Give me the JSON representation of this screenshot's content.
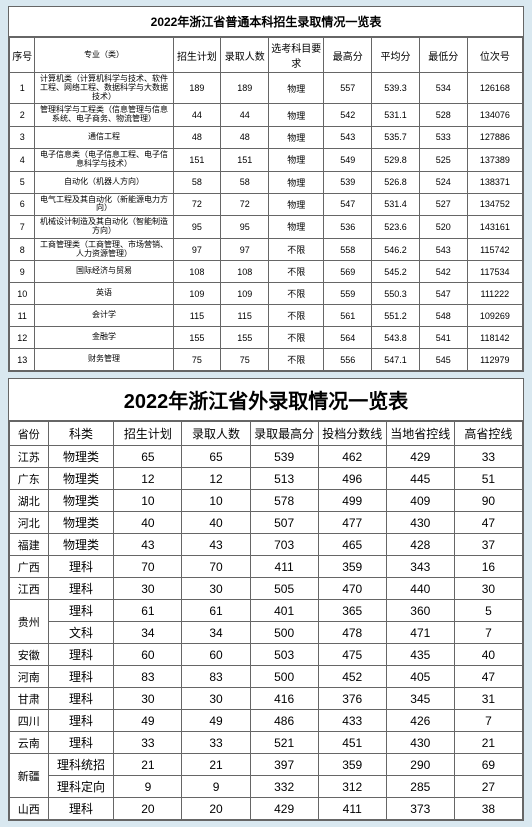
{
  "table1": {
    "title": "2022年浙江省普通本科招生录取情况一览表",
    "headers": [
      "序号",
      "专业（类）",
      "招生计划",
      "录取人数",
      "选考科目要求",
      "最高分",
      "平均分",
      "最低分",
      "位次号"
    ],
    "rows": [
      [
        "1",
        "计算机类（计算机科学与技术、软件工程、网络工程、数据科学与大数据技术）",
        "189",
        "189",
        "物理",
        "557",
        "539.3",
        "534",
        "126168"
      ],
      [
        "2",
        "管理科学与工程类（信息管理与信息系统、电子商务、物流管理）",
        "44",
        "44",
        "物理",
        "542",
        "531.1",
        "528",
        "134076"
      ],
      [
        "3",
        "通信工程",
        "48",
        "48",
        "物理",
        "543",
        "535.7",
        "533",
        "127886"
      ],
      [
        "4",
        "电子信息类（电子信息工程、电子信息科学与技术）",
        "151",
        "151",
        "物理",
        "549",
        "529.8",
        "525",
        "137389"
      ],
      [
        "5",
        "自动化（机器人方向）",
        "58",
        "58",
        "物理",
        "539",
        "526.8",
        "524",
        "138371"
      ],
      [
        "6",
        "电气工程及其自动化（新能源电力方向）",
        "72",
        "72",
        "物理",
        "547",
        "531.4",
        "527",
        "134752"
      ],
      [
        "7",
        "机械设计制造及其自动化（智能制造方向）",
        "95",
        "95",
        "物理",
        "536",
        "523.6",
        "520",
        "143161"
      ],
      [
        "8",
        "工商管理类（工商管理、市场营销、人力资源管理）",
        "97",
        "97",
        "不限",
        "558",
        "546.2",
        "543",
        "115742"
      ],
      [
        "9",
        "国际经济与贸易",
        "108",
        "108",
        "不限",
        "569",
        "545.2",
        "542",
        "117534"
      ],
      [
        "10",
        "英语",
        "109",
        "109",
        "不限",
        "559",
        "550.3",
        "547",
        "111222"
      ],
      [
        "11",
        "会计学",
        "115",
        "115",
        "不限",
        "561",
        "551.2",
        "548",
        "109269"
      ],
      [
        "12",
        "金融学",
        "155",
        "155",
        "不限",
        "564",
        "543.8",
        "541",
        "118142"
      ],
      [
        "13",
        "财务管理",
        "75",
        "75",
        "不限",
        "556",
        "547.1",
        "545",
        "112979"
      ]
    ]
  },
  "table2": {
    "title": "2022年浙江省外录取情况一览表",
    "headers": [
      "省份",
      "科类",
      "招生计划",
      "录取人数",
      "录取最高分",
      "投档分数线",
      "当地省控线",
      "高省控线"
    ],
    "rows": [
      {
        "prov": "江苏",
        "provrs": 1,
        "cells": [
          "物理类",
          "65",
          "65",
          "539",
          "462",
          "429",
          "33"
        ]
      },
      {
        "prov": "广东",
        "provrs": 1,
        "cells": [
          "物理类",
          "12",
          "12",
          "513",
          "496",
          "445",
          "51"
        ]
      },
      {
        "prov": "湖北",
        "provrs": 1,
        "cells": [
          "物理类",
          "10",
          "10",
          "578",
          "499",
          "409",
          "90"
        ]
      },
      {
        "prov": "河北",
        "provrs": 1,
        "cells": [
          "物理类",
          "40",
          "40",
          "507",
          "477",
          "430",
          "47"
        ]
      },
      {
        "prov": "福建",
        "provrs": 1,
        "cells": [
          "物理类",
          "43",
          "43",
          "703",
          "465",
          "428",
          "37"
        ]
      },
      {
        "prov": "广西",
        "provrs": 1,
        "cells": [
          "理科",
          "70",
          "70",
          "411",
          "359",
          "343",
          "16"
        ]
      },
      {
        "prov": "江西",
        "provrs": 1,
        "cells": [
          "理科",
          "30",
          "30",
          "505",
          "470",
          "440",
          "30"
        ]
      },
      {
        "prov": "贵州",
        "provrs": 2,
        "cells": [
          "理科",
          "61",
          "61",
          "401",
          "365",
          "360",
          "5"
        ]
      },
      {
        "prov": "",
        "provrs": 0,
        "cells": [
          "文科",
          "34",
          "34",
          "500",
          "478",
          "471",
          "7"
        ]
      },
      {
        "prov": "安徽",
        "provrs": 1,
        "cells": [
          "理科",
          "60",
          "60",
          "503",
          "475",
          "435",
          "40"
        ]
      },
      {
        "prov": "河南",
        "provrs": 1,
        "cells": [
          "理科",
          "83",
          "83",
          "500",
          "452",
          "405",
          "47"
        ]
      },
      {
        "prov": "甘肃",
        "provrs": 1,
        "cells": [
          "理科",
          "30",
          "30",
          "416",
          "376",
          "345",
          "31"
        ]
      },
      {
        "prov": "四川",
        "provrs": 1,
        "cells": [
          "理科",
          "49",
          "49",
          "486",
          "433",
          "426",
          "7"
        ]
      },
      {
        "prov": "云南",
        "provrs": 1,
        "cells": [
          "理科",
          "33",
          "33",
          "521",
          "451",
          "430",
          "21"
        ]
      },
      {
        "prov": "新疆",
        "provrs": 2,
        "cells": [
          "理科统招",
          "21",
          "21",
          "397",
          "359",
          "290",
          "69"
        ]
      },
      {
        "prov": "",
        "provrs": 0,
        "cells": [
          "理科定向",
          "9",
          "9",
          "332",
          "312",
          "285",
          "27"
        ]
      },
      {
        "prov": "山西",
        "provrs": 1,
        "cells": [
          "理科",
          "20",
          "20",
          "429",
          "411",
          "373",
          "38"
        ]
      }
    ]
  },
  "colors": {
    "page_bg": "#d9e8f0",
    "table_bg": "#ffffff",
    "border": "#666666",
    "text": "#000000"
  }
}
